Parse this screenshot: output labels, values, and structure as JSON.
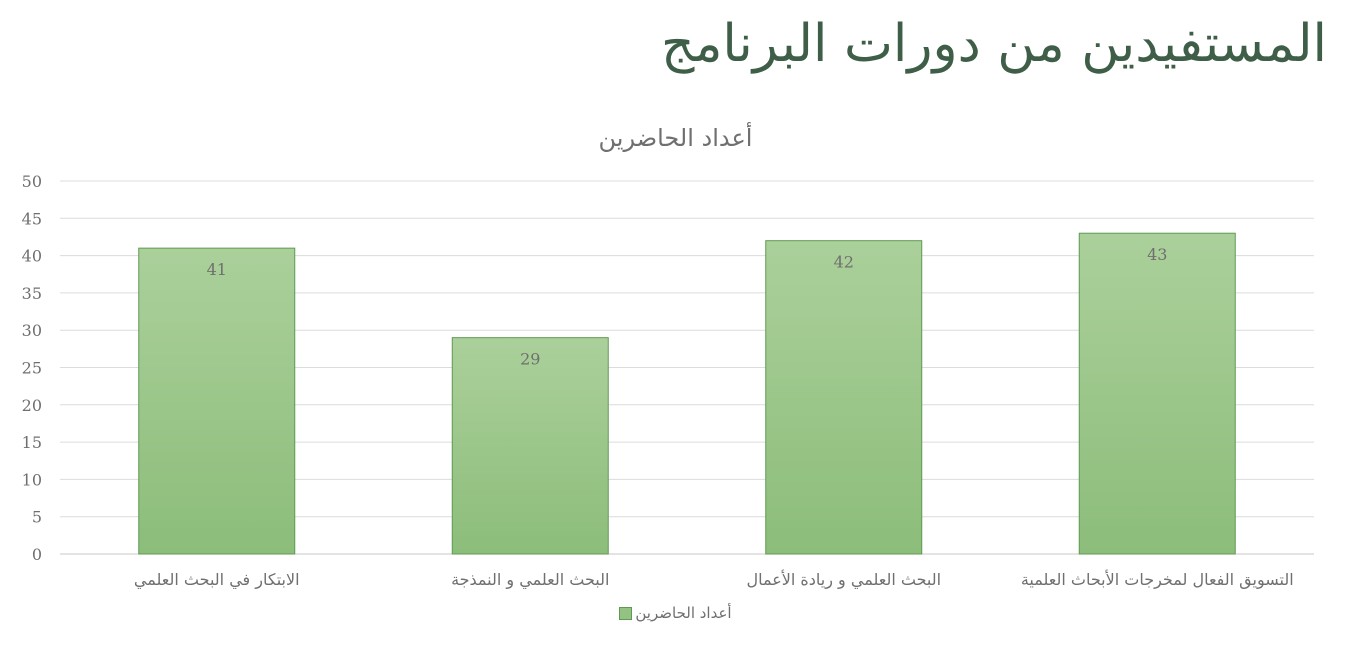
{
  "header": {
    "title": "المستفيدين من دورات البرنامج"
  },
  "chart_data": {
    "type": "bar",
    "title": "أعداد الحاضرين",
    "categories": [
      "الابتكار في البحث العلمي",
      "البحث العلمي و النمذجة",
      "البحث العلمي و ريادة الأعمال",
      "التسويق الفعال لمخرجات الأبحاث العلمية"
    ],
    "series": [
      {
        "name": "أعداد الحاضرين",
        "values": [
          41,
          29,
          42,
          43
        ]
      }
    ],
    "ylim": [
      0,
      50
    ],
    "yticks": [
      0,
      5,
      10,
      15,
      20,
      25,
      30,
      35,
      40,
      45,
      50
    ],
    "grid": true,
    "legend": "bottom",
    "bar_color_top": "#abd09b",
    "bar_color_bottom": "#8cbd7a",
    "bar_border": "#5f9a52"
  }
}
